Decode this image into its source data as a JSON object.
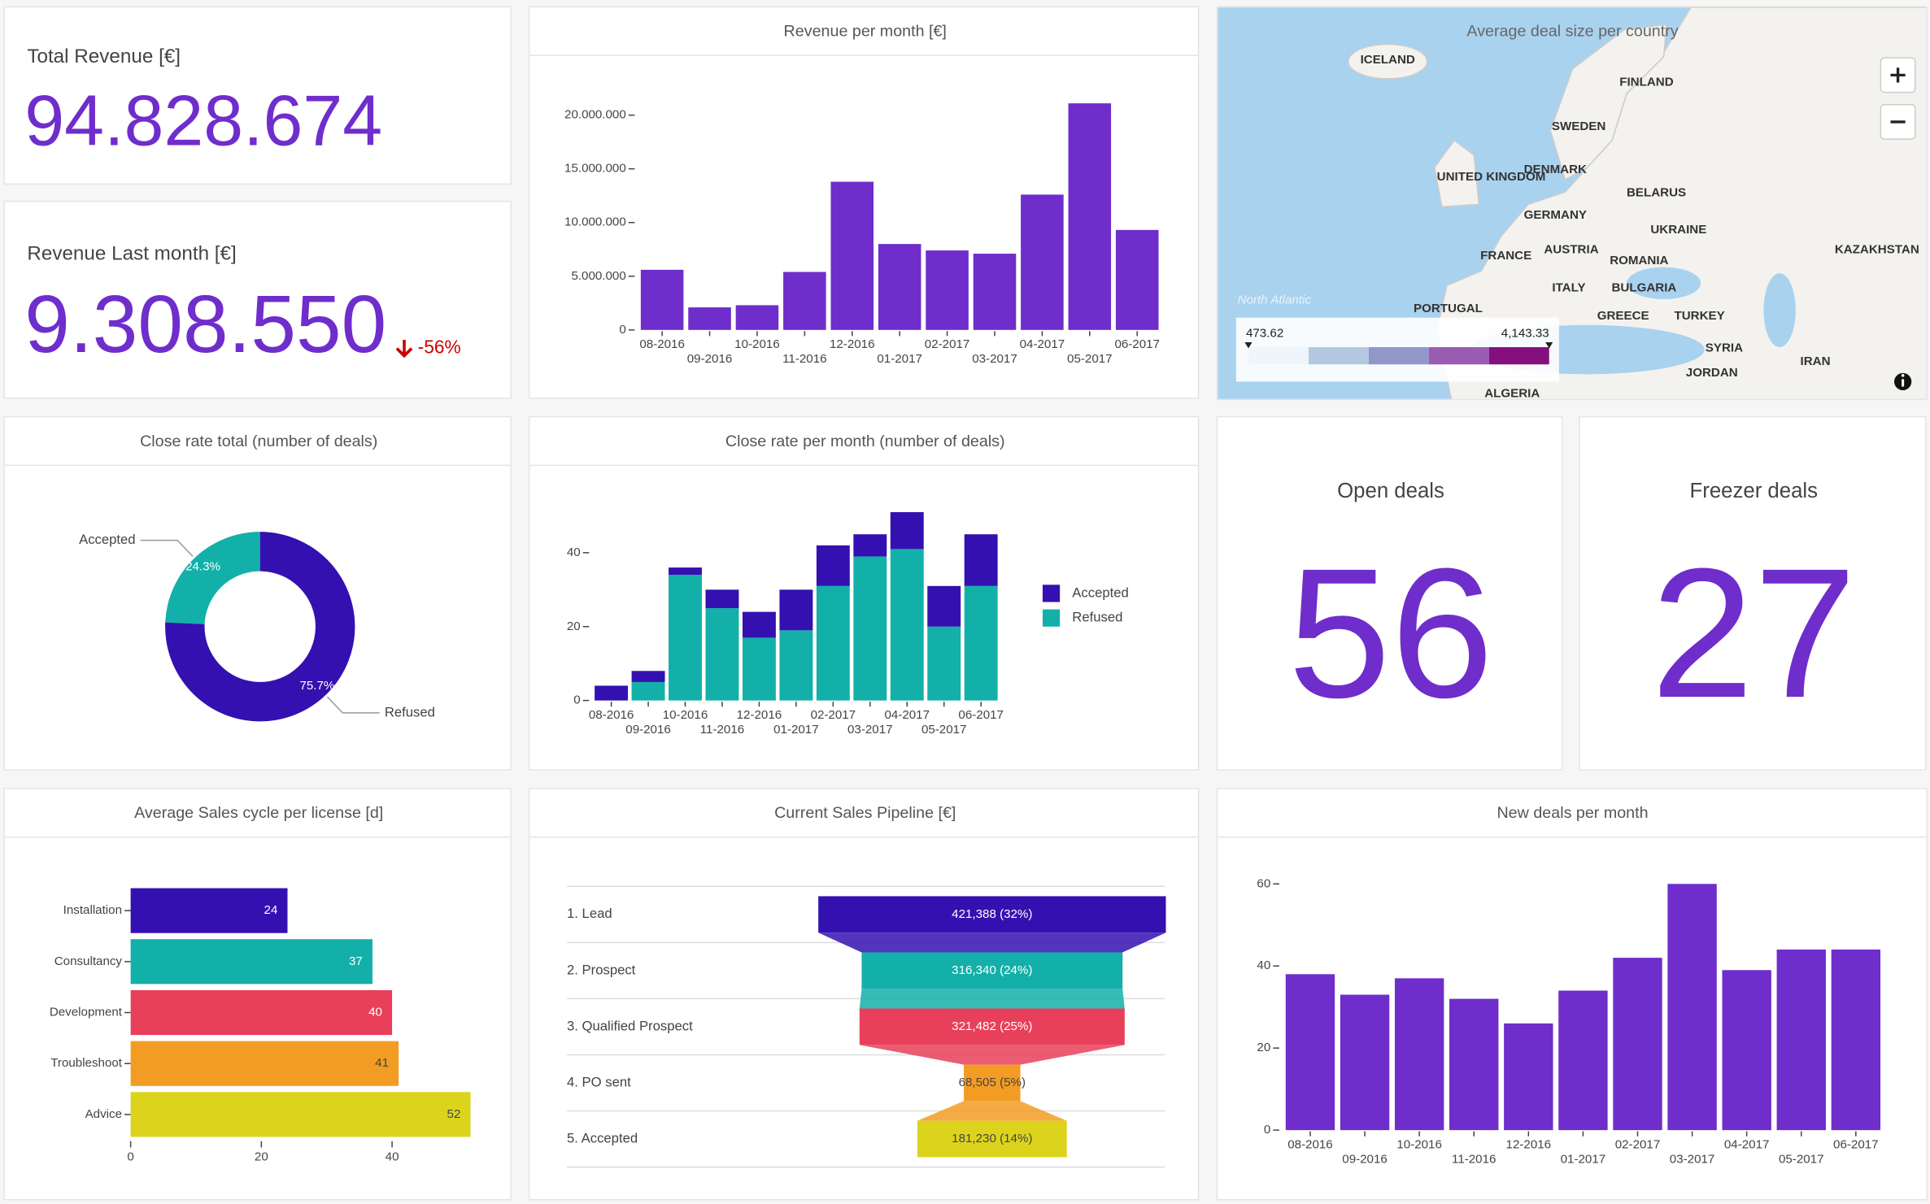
{
  "kpis": [
    {
      "title": "Total Revenue [€]",
      "value": "94.828.674"
    },
    {
      "title": "Revenue Last month [€]",
      "value": "9.308.550",
      "change": "-56%"
    },
    {
      "title": "Open deals",
      "value": "56"
    },
    {
      "title": "Freezer deals",
      "value": "27"
    }
  ],
  "chart_data": [
    {
      "type": "bar",
      "title": "Revenue per month [€]",
      "categories": [
        "08-2016",
        "09-2016",
        "10-2016",
        "11-2016",
        "12-2016",
        "01-2017",
        "02-2017",
        "03-2017",
        "04-2017",
        "05-2017",
        "06-2017"
      ],
      "values": [
        5600000,
        2100000,
        2300000,
        5400000,
        13800000,
        8000000,
        7400000,
        7100000,
        12600000,
        21100000,
        9308550
      ],
      "color": "#6f2dcc",
      "ylim": [
        0,
        23500000
      ],
      "yticks": [
        0,
        {
          "value": 5000000,
          "label": "5.000.000"
        },
        {
          "value": 10000000,
          "label": "10.000.000"
        },
        {
          "value": 15000000,
          "label": "15.000.000"
        },
        {
          "value": 20000000,
          "label": "20.000.000"
        }
      ]
    },
    {
      "type": "choropleth",
      "title": "Average deal size per country",
      "labels": [
        "ICELAND",
        "FINLAND",
        "SWEDEN",
        "UNITED KINGDOM",
        "DENMARK",
        "BELARUS",
        "GERMANY",
        "UKRAINE",
        "FRANCE",
        "AUSTRIA",
        "ROMANIA",
        "KAZAKHSTAN",
        "ITALY",
        "BULGARIA",
        "PORTUGAL",
        "GREECE",
        "TURKEY",
        "SYRIA",
        "IRAN",
        "JORDAN",
        "ALGERIA",
        "North Atlantic"
      ],
      "colorscale": [
        "#eef6fb",
        "#b3c9e1",
        "#9197c9",
        "#9a5cb0",
        "#860f7e"
      ],
      "colorbar_ticks": [
        473.62,
        {
          "value": 4143.33,
          "label": "4,143.33"
        }
      ]
    },
    {
      "type": "donut",
      "title": "Close rate total (number of deals)",
      "categories": [
        "Accepted",
        "Refused"
      ],
      "values": [
        24.3,
        75.7
      ],
      "value_labels": [
        "24.3%",
        "75.7%"
      ],
      "colors": [
        "#13b0a9",
        "#3510b0"
      ]
    },
    {
      "type": "bar",
      "title": "Close rate per month (number of deals)",
      "categories": [
        "08-2016",
        "09-2016",
        "10-2016",
        "11-2016",
        "12-2016",
        "01-2017",
        "02-2017",
        "03-2017",
        "04-2017",
        "05-2017",
        "06-2017"
      ],
      "series": [
        {
          "name": "Accepted",
          "color": "#3510b0",
          "values": [
            4,
            3,
            2,
            5,
            7,
            11,
            11,
            6,
            10,
            11,
            14
          ]
        },
        {
          "name": "Refused",
          "color": "#13b0a9",
          "values": [
            0,
            5,
            34,
            25,
            17,
            19,
            31,
            39,
            41,
            20,
            31
          ]
        }
      ],
      "ylim": [
        0,
        53
      ],
      "yticks": [
        0,
        20,
        40
      ]
    },
    {
      "type": "hbar",
      "title": "Average Sales cycle per license [d]",
      "categories": [
        "Installation",
        "Consultancy",
        "Development",
        "Troubleshoot",
        "Advice"
      ],
      "values": [
        24,
        37,
        40,
        41,
        52
      ],
      "colors": [
        "#3510b0",
        "#13b0a9",
        "#e8405a",
        "#f39c24",
        "#dcd41c"
      ],
      "xlim": [
        0,
        56
      ],
      "xticks": [
        0,
        20,
        40
      ]
    },
    {
      "type": "funnel",
      "title": "Current Sales Pipeline [€]",
      "categories": [
        "1. Lead",
        "2. Prospect",
        "3. Qualified Prospect",
        "4. PO sent",
        "5. Accepted"
      ],
      "values": [
        421388,
        316340,
        321482,
        68505,
        181230
      ],
      "value_labels": [
        "421,388 (32%)",
        "316,340 (24%)",
        "321,482 (25%)",
        "68,505 (5%)",
        "181,230 (14%)"
      ],
      "colors": [
        "#3510b0",
        "#13b0a9",
        "#e8405a",
        "#f39c24",
        "#dcd41c"
      ]
    },
    {
      "type": "bar",
      "title": "New deals per month",
      "categories": [
        "08-2016",
        "09-2016",
        "10-2016",
        "11-2016",
        "12-2016",
        "01-2017",
        "02-2017",
        "03-2017",
        "04-2017",
        "05-2017",
        "06-2017"
      ],
      "values": [
        38,
        33,
        37,
        32,
        26,
        34,
        42,
        60,
        39,
        44,
        44
      ],
      "color": "#6f2dcc",
      "ylim": [
        0,
        63
      ],
      "yticks": [
        0,
        20,
        40,
        60
      ]
    }
  ]
}
